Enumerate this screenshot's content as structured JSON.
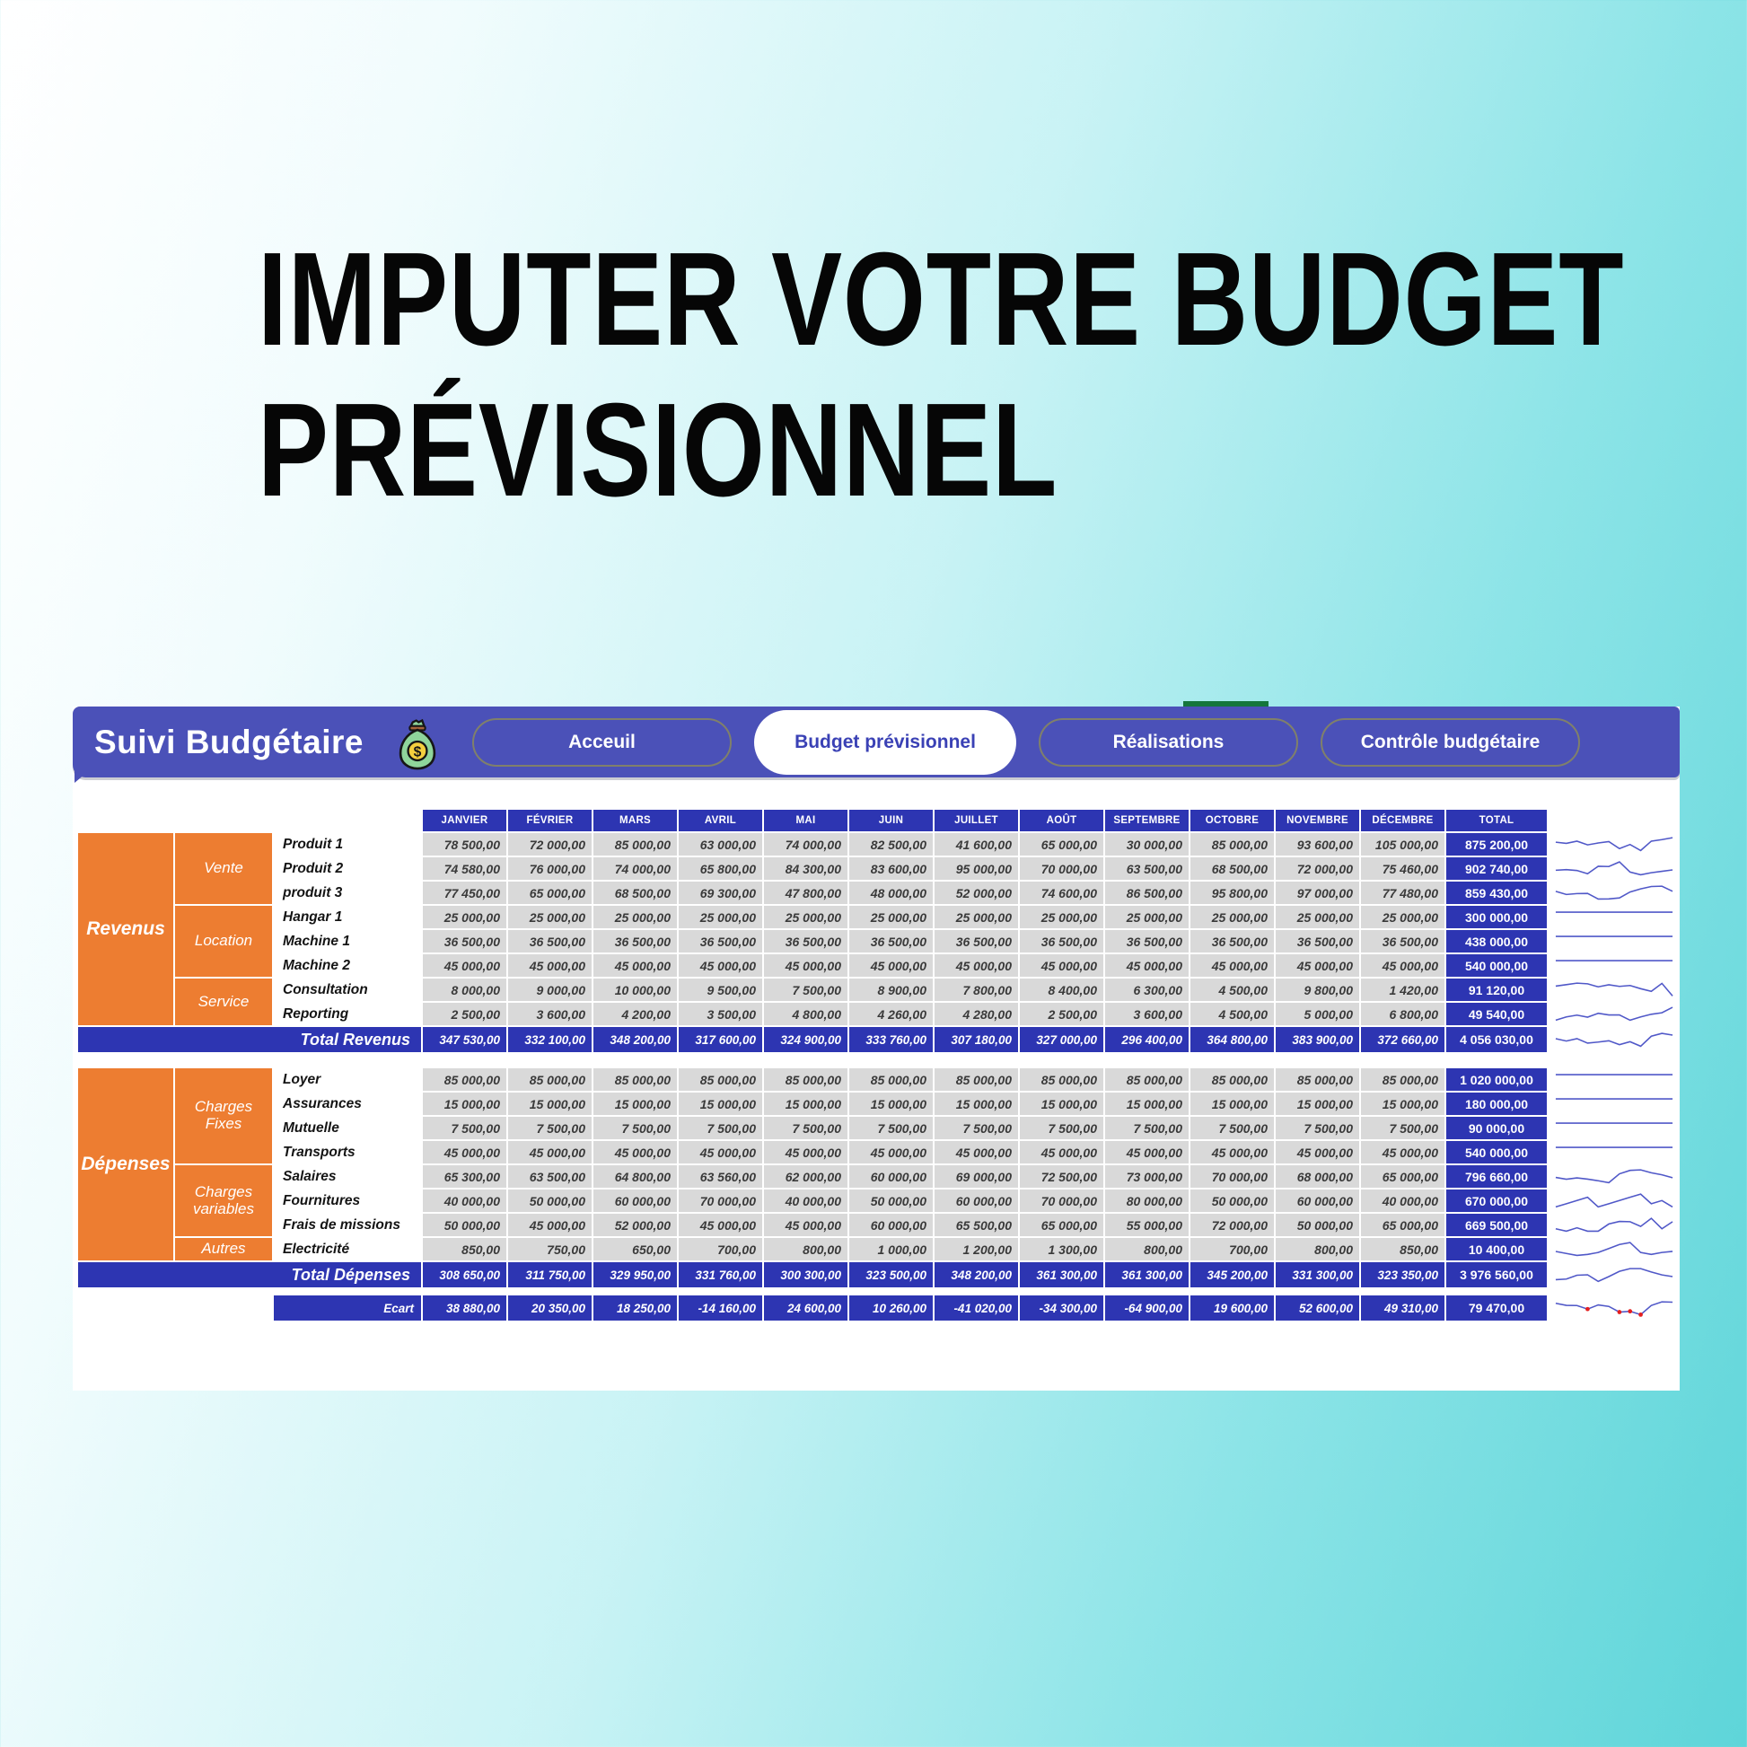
{
  "page_title": {
    "line1": "IMPUTER VOTRE BUDGET",
    "line2": "PRÉVISIONNEL"
  },
  "header": {
    "app_title": "Suivi Budgétaire",
    "app_icon": "money-bag-icon",
    "tabs": [
      {
        "label": "Acceuil",
        "active": false
      },
      {
        "label": "Budget prévisionnel",
        "active": true
      },
      {
        "label": "Réalisations",
        "active": false
      },
      {
        "label": "Contrôle budgétaire",
        "active": false
      }
    ]
  },
  "colors": {
    "topbar": "#4b51b8",
    "deep_blue": "#2d35b2",
    "orange": "#ED7D31",
    "cell_gray": "#d9d9d9",
    "sparkline": "#5058c8",
    "negative_dot": "#e51f1f",
    "green_strip": "#14763c"
  },
  "table": {
    "months": [
      "JANVIER",
      "FÉVRIER",
      "MARS",
      "AVRIL",
      "MAI",
      "JUIN",
      "JUILLET",
      "AOÛT",
      "SEPTEMBRE",
      "OCTOBRE",
      "NOVEMBRE",
      "DÉCEMBRE"
    ],
    "total_label": "TOTAL",
    "sections": [
      {
        "group": "Revenus",
        "subgroups": [
          {
            "label": "Vente",
            "span": 3
          },
          {
            "label": "Location",
            "span": 3
          },
          {
            "label": "Service",
            "span": 2
          }
        ],
        "rows": [
          {
            "label": "Produit 1",
            "values": [
              "78 500,00",
              "72 000,00",
              "85 000,00",
              "63 000,00",
              "74 000,00",
              "82 500,00",
              "41 600,00",
              "65 000,00",
              "30 000,00",
              "85 000,00",
              "93 600,00",
              "105 000,00"
            ],
            "total": "875 200,00"
          },
          {
            "label": "Produit 2",
            "values": [
              "74 580,00",
              "76 000,00",
              "74 000,00",
              "65 800,00",
              "84 300,00",
              "83 600,00",
              "95 000,00",
              "70 000,00",
              "63 500,00",
              "68 500,00",
              "72 000,00",
              "75 460,00"
            ],
            "total": "902 740,00"
          },
          {
            "label": "produit 3",
            "values": [
              "77 450,00",
              "65 000,00",
              "68 500,00",
              "69 300,00",
              "47 800,00",
              "48 000,00",
              "52 000,00",
              "74 600,00",
              "86 500,00",
              "95 800,00",
              "97 000,00",
              "77 480,00"
            ],
            "total": "859 430,00"
          },
          {
            "label": "Hangar 1",
            "values": [
              "25 000,00",
              "25 000,00",
              "25 000,00",
              "25 000,00",
              "25 000,00",
              "25 000,00",
              "25 000,00",
              "25 000,00",
              "25 000,00",
              "25 000,00",
              "25 000,00",
              "25 000,00"
            ],
            "total": "300 000,00"
          },
          {
            "label": "Machine 1",
            "values": [
              "36 500,00",
              "36 500,00",
              "36 500,00",
              "36 500,00",
              "36 500,00",
              "36 500,00",
              "36 500,00",
              "36 500,00",
              "36 500,00",
              "36 500,00",
              "36 500,00",
              "36 500,00"
            ],
            "total": "438 000,00"
          },
          {
            "label": "Machine 2",
            "values": [
              "45 000,00",
              "45 000,00",
              "45 000,00",
              "45 000,00",
              "45 000,00",
              "45 000,00",
              "45 000,00",
              "45 000,00",
              "45 000,00",
              "45 000,00",
              "45 000,00",
              "45 000,00"
            ],
            "total": "540 000,00"
          },
          {
            "label": "Consultation",
            "values": [
              "8 000,00",
              "9 000,00",
              "10 000,00",
              "9 500,00",
              "7 500,00",
              "8 900,00",
              "7 800,00",
              "8 400,00",
              "6 300,00",
              "4 500,00",
              "9 800,00",
              "1 420,00"
            ],
            "total": "91 120,00"
          },
          {
            "label": "Reporting",
            "values": [
              "2 500,00",
              "3 600,00",
              "4 200,00",
              "3 500,00",
              "4 800,00",
              "4 260,00",
              "4 280,00",
              "2 500,00",
              "3 600,00",
              "4 500,00",
              "5 000,00",
              "6 800,00"
            ],
            "total": "49 540,00"
          }
        ],
        "total_row": {
          "label": "Total Revenus",
          "values": [
            "347 530,00",
            "332 100,00",
            "348 200,00",
            "317 600,00",
            "324 900,00",
            "333 760,00",
            "307 180,00",
            "327 000,00",
            "296 400,00",
            "364 800,00",
            "383 900,00",
            "372 660,00"
          ],
          "total": "4 056 030,00"
        }
      },
      {
        "group": "Dépenses",
        "subgroups": [
          {
            "label": "Charges Fixes",
            "span": 4
          },
          {
            "label": "Charges variables",
            "span": 3
          },
          {
            "label": "Autres",
            "span": 1
          }
        ],
        "rows": [
          {
            "label": "Loyer",
            "values": [
              "85 000,00",
              "85 000,00",
              "85 000,00",
              "85 000,00",
              "85 000,00",
              "85 000,00",
              "85 000,00",
              "85 000,00",
              "85 000,00",
              "85 000,00",
              "85 000,00",
              "85 000,00"
            ],
            "total": "1 020 000,00"
          },
          {
            "label": "Assurances",
            "values": [
              "15 000,00",
              "15 000,00",
              "15 000,00",
              "15 000,00",
              "15 000,00",
              "15 000,00",
              "15 000,00",
              "15 000,00",
              "15 000,00",
              "15 000,00",
              "15 000,00",
              "15 000,00"
            ],
            "total": "180 000,00"
          },
          {
            "label": "Mutuelle",
            "values": [
              "7 500,00",
              "7 500,00",
              "7 500,00",
              "7 500,00",
              "7 500,00",
              "7 500,00",
              "7 500,00",
              "7 500,00",
              "7 500,00",
              "7 500,00",
              "7 500,00",
              "7 500,00"
            ],
            "total": "90 000,00"
          },
          {
            "label": "Transports",
            "values": [
              "45 000,00",
              "45 000,00",
              "45 000,00",
              "45 000,00",
              "45 000,00",
              "45 000,00",
              "45 000,00",
              "45 000,00",
              "45 000,00",
              "45 000,00",
              "45 000,00",
              "45 000,00"
            ],
            "total": "540 000,00"
          },
          {
            "label": "Salaires",
            "values": [
              "65 300,00",
              "63 500,00",
              "64 800,00",
              "63 560,00",
              "62 000,00",
              "60 000,00",
              "69 000,00",
              "72 500,00",
              "73 000,00",
              "70 000,00",
              "68 000,00",
              "65 000,00"
            ],
            "total": "796 660,00"
          },
          {
            "label": "Fournitures",
            "values": [
              "40 000,00",
              "50 000,00",
              "60 000,00",
              "70 000,00",
              "40 000,00",
              "50 000,00",
              "60 000,00",
              "70 000,00",
              "80 000,00",
              "50 000,00",
              "60 000,00",
              "40 000,00"
            ],
            "total": "670 000,00"
          },
          {
            "label": "Frais de missions",
            "values": [
              "50 000,00",
              "45 000,00",
              "52 000,00",
              "45 000,00",
              "45 000,00",
              "60 000,00",
              "65 500,00",
              "65 000,00",
              "55 000,00",
              "72 000,00",
              "50 000,00",
              "65 000,00"
            ],
            "total": "669 500,00"
          },
          {
            "label": "Electricité",
            "values": [
              "850,00",
              "750,00",
              "650,00",
              "700,00",
              "800,00",
              "1 000,00",
              "1 200,00",
              "1 300,00",
              "800,00",
              "700,00",
              "800,00",
              "850,00"
            ],
            "total": "10 400,00"
          }
        ],
        "total_row": {
          "label": "Total Dépenses",
          "values": [
            "308 650,00",
            "311 750,00",
            "329 950,00",
            "331 760,00",
            "300 300,00",
            "323 500,00",
            "348 200,00",
            "361 300,00",
            "361 300,00",
            "345 200,00",
            "331 300,00",
            "323 350,00"
          ],
          "total": "3 976 560,00"
        }
      }
    ],
    "ecart_row": {
      "label": "Ecart",
      "values": [
        "38 880,00",
        "20 350,00",
        "18 250,00",
        "-14 160,00",
        "24 600,00",
        "10 260,00",
        "-41 020,00",
        "-34 300,00",
        "-64 900,00",
        "19 600,00",
        "52 600,00",
        "49 310,00"
      ],
      "total": "79 470,00"
    }
  }
}
